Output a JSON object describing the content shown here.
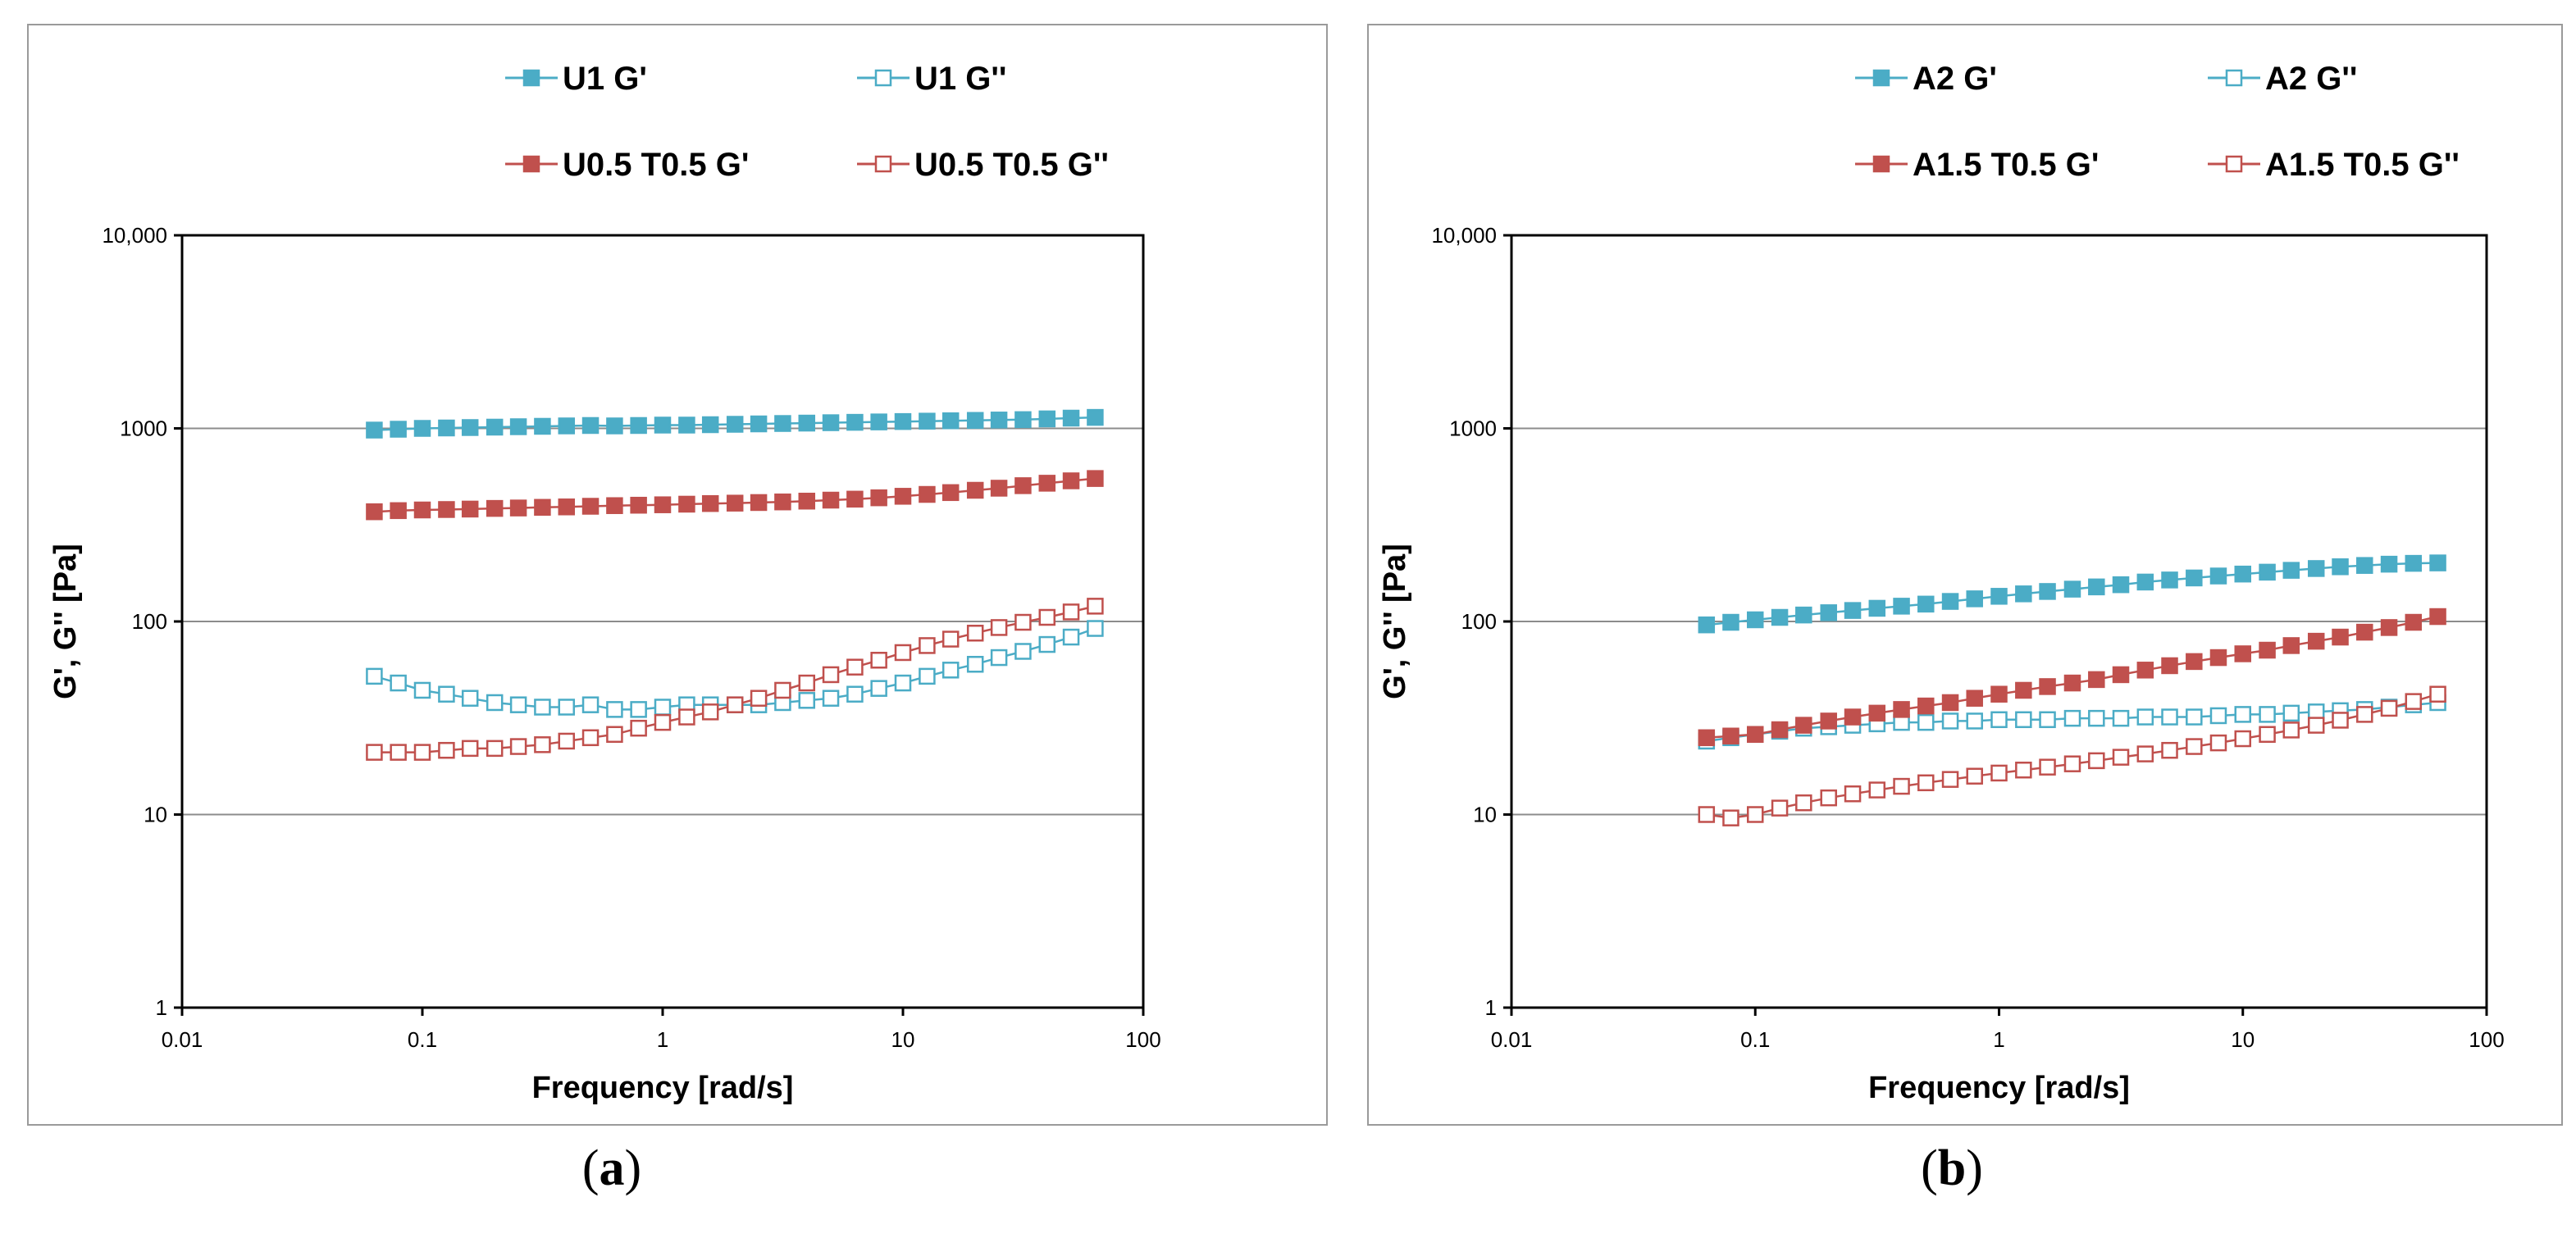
{
  "colors": {
    "series_blue": "#4bacc6",
    "series_red": "#c0504d",
    "gridline": "#8c8c8c",
    "frame": "#000000",
    "panel_border": "#9a9a9a",
    "text": "#000000"
  },
  "chart_data": [
    {
      "type": "scatter",
      "panel_label": "a",
      "title": "",
      "xlabel": "Frequency [rad/s]",
      "ylabel": "G', G'' [Pa]",
      "xscale": "log",
      "yscale": "log",
      "xlim": [
        0.01,
        100
      ],
      "ylim": [
        1,
        10000
      ],
      "xticks": [
        0.01,
        0.1,
        1,
        10,
        100
      ],
      "xtick_labels": [
        "0.01",
        "0.1",
        "1",
        "10",
        "100"
      ],
      "yticks": [
        1,
        10,
        100,
        1000,
        10000
      ],
      "ytick_labels": [
        "1",
        "10",
        "100",
        "1000",
        "10,000"
      ],
      "grid": "horizontal major lines",
      "legend_position": "top, above plot area (2 columns)",
      "x": [
        0.0631,
        0.0794,
        0.1,
        0.126,
        0.158,
        0.2,
        0.251,
        0.316,
        0.398,
        0.501,
        0.631,
        0.794,
        1.0,
        1.26,
        1.58,
        2.0,
        2.51,
        3.16,
        3.98,
        5.01,
        6.31,
        7.94,
        10.0,
        12.6,
        15.8,
        20.0,
        25.1,
        31.6,
        39.8,
        50.1,
        63.1
      ],
      "series": [
        {
          "name": "U1 G'",
          "color": "#4bacc6",
          "filled": true,
          "values": [
            980,
            990,
            1000,
            1005,
            1010,
            1015,
            1020,
            1025,
            1030,
            1035,
            1030,
            1035,
            1040,
            1040,
            1045,
            1050,
            1055,
            1060,
            1065,
            1070,
            1075,
            1080,
            1085,
            1090,
            1095,
            1100,
            1105,
            1110,
            1120,
            1130,
            1140
          ]
        },
        {
          "name": "U1 G''",
          "color": "#4bacc6",
          "filled": false,
          "values": [
            52,
            48,
            44,
            42,
            40,
            38,
            37,
            36,
            36,
            37,
            35,
            35,
            36,
            37,
            37,
            37,
            37,
            38,
            39,
            40,
            42,
            45,
            48,
            52,
            56,
            60,
            65,
            70,
            76,
            83,
            92
          ]
        },
        {
          "name": "U0.5 T0.5 G'",
          "color": "#c0504d",
          "filled": true,
          "values": [
            370,
            375,
            378,
            380,
            382,
            385,
            387,
            390,
            392,
            395,
            398,
            400,
            402,
            405,
            408,
            410,
            413,
            416,
            420,
            425,
            430,
            437,
            445,
            455,
            465,
            478,
            490,
            505,
            520,
            535,
            550
          ]
        },
        {
          "name": "U0.5 T0.5 G''",
          "color": "#c0504d",
          "filled": false,
          "values": [
            21,
            21,
            21,
            21.5,
            22,
            22,
            22.5,
            23,
            24,
            25,
            26,
            28,
            30,
            32,
            34,
            37,
            40,
            44,
            48,
            53,
            58,
            63,
            69,
            75,
            81,
            87,
            93,
            99,
            105,
            112,
            120
          ]
        }
      ]
    },
    {
      "type": "scatter",
      "panel_label": "b",
      "title": "",
      "xlabel": "Frequency [rad/s]",
      "ylabel": "G', G'' [Pa]",
      "xscale": "log",
      "yscale": "log",
      "xlim": [
        0.01,
        100
      ],
      "ylim": [
        1,
        10000
      ],
      "xticks": [
        0.01,
        0.1,
        1,
        10,
        100
      ],
      "xtick_labels": [
        "0.01",
        "0.1",
        "1",
        "10",
        "100"
      ],
      "yticks": [
        1,
        10,
        100,
        1000,
        10000
      ],
      "ytick_labels": [
        "1",
        "10",
        "100",
        "1000",
        "10,000"
      ],
      "grid": "horizontal major lines",
      "legend_position": "top, above plot area (2 columns)",
      "x": [
        0.0631,
        0.0794,
        0.1,
        0.126,
        0.158,
        0.2,
        0.251,
        0.316,
        0.398,
        0.501,
        0.631,
        0.794,
        1.0,
        1.26,
        1.58,
        2.0,
        2.51,
        3.16,
        3.98,
        5.01,
        6.31,
        7.94,
        10.0,
        12.6,
        15.8,
        20.0,
        25.1,
        31.6,
        39.8,
        50.1,
        63.1
      ],
      "series": [
        {
          "name": "A2 G'",
          "color": "#4bacc6",
          "filled": true,
          "values": [
            96,
            99,
            102,
            105,
            108,
            111,
            114,
            117,
            120,
            123,
            127,
            131,
            135,
            139,
            143,
            147,
            151,
            155,
            160,
            164,
            168,
            172,
            176,
            180,
            184,
            188,
            192,
            195,
            198,
            200,
            201
          ]
        },
        {
          "name": "A2 G''",
          "color": "#4bacc6",
          "filled": false,
          "values": [
            24,
            25,
            26,
            27,
            28,
            28.5,
            29,
            29.5,
            30,
            30,
            30.5,
            30.5,
            31,
            31,
            31,
            31.5,
            31.5,
            31.5,
            32,
            32,
            32,
            32.5,
            33,
            33,
            33.5,
            34,
            34.5,
            35,
            36,
            37,
            38
          ]
        },
        {
          "name": "A1.5 T0.5 G'",
          "color": "#c0504d",
          "filled": true,
          "values": [
            25,
            25.5,
            26,
            27.5,
            29,
            30.5,
            32,
            33.5,
            35,
            36.5,
            38,
            40,
            42,
            44,
            46,
            48,
            50,
            53,
            56,
            59,
            62,
            65,
            68,
            71,
            75,
            79,
            83,
            88,
            93,
            99,
            106
          ]
        },
        {
          "name": "A1.5 T0.5 G''",
          "color": "#c0504d",
          "filled": false,
          "values": [
            10,
            9.6,
            10,
            10.8,
            11.5,
            12.2,
            12.8,
            13.4,
            14,
            14.6,
            15.2,
            15.8,
            16.4,
            17,
            17.6,
            18.3,
            19,
            19.8,
            20.6,
            21.5,
            22.5,
            23.5,
            24.7,
            26,
            27.4,
            29,
            30.8,
            33,
            35.5,
            38.5,
            42
          ]
        }
      ]
    }
  ]
}
